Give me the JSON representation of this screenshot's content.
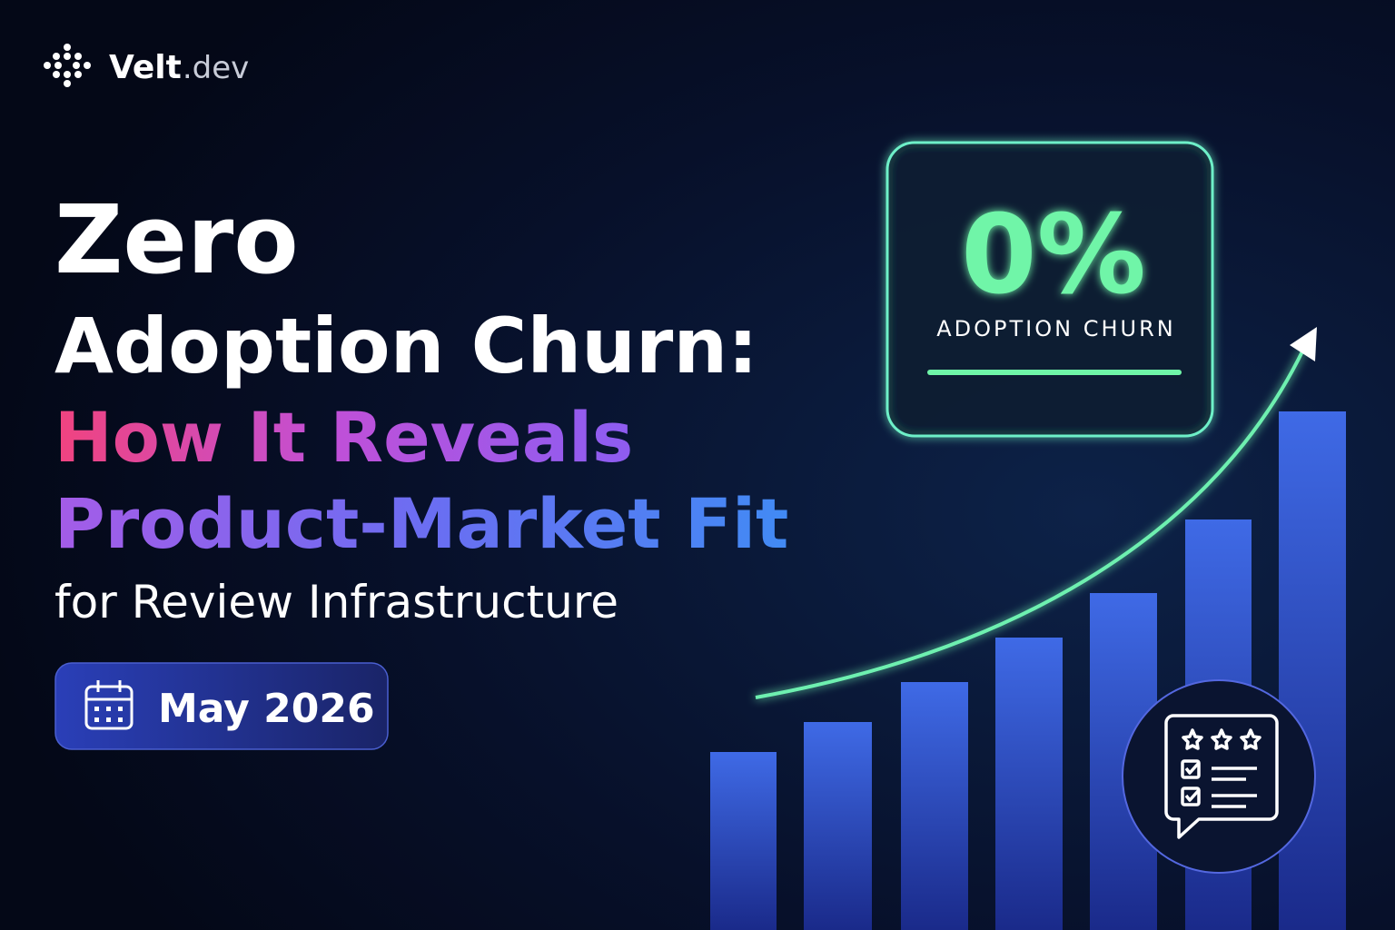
{
  "brand": {
    "name": "Velt",
    "suffix": ".dev"
  },
  "headline": {
    "line1": "Zero",
    "line2": "Adoption Churn:",
    "line3": "How It Reveals",
    "line4": "Product-Market Fit",
    "line5": "for Review Infrastructure"
  },
  "date": "May 2026",
  "stat": {
    "value": "0%",
    "label": "ADOPTION CHURN"
  }
}
